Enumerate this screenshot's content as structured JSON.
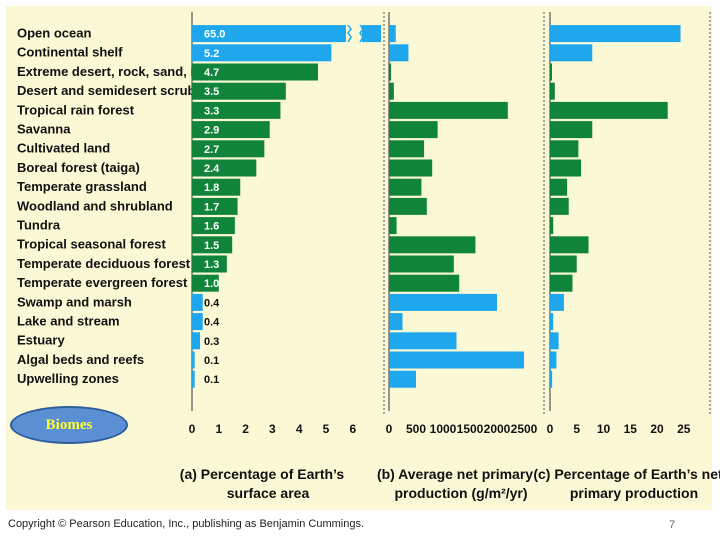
{
  "badge_label": "Biomes",
  "copyright": "Copyright © Pearson Education, Inc., publishing as Benjamin Cummings.",
  "page_number": "7",
  "colors": {
    "aquatic": "#1ea7ec",
    "terrestrial": "#10843a",
    "background": "#fbf8d6",
    "badge": "#5b8fd4",
    "badge_text": "#ffff33"
  },
  "chart_data": {
    "type": "bar",
    "orientation": "horizontal",
    "categories": [
      "Open ocean",
      "Continental shelf",
      "Extreme desert, rock, sand, ice",
      "Desert and semidesert scrub",
      "Tropical rain forest",
      "Savanna",
      "Cultivated land",
      "Boreal forest (taiga)",
      "Temperate grassland",
      "Woodland and shrubland",
      "Tundra",
      "Tropical seasonal forest",
      "Temperate deciduous forest",
      "Temperate evergreen forest",
      "Swamp and marsh",
      "Lake and stream",
      "Estuary",
      "Algal beds and reefs",
      "Upwelling zones"
    ],
    "category_group": [
      "aquatic",
      "aquatic",
      "terrestrial",
      "terrestrial",
      "terrestrial",
      "terrestrial",
      "terrestrial",
      "terrestrial",
      "terrestrial",
      "terrestrial",
      "terrestrial",
      "terrestrial",
      "terrestrial",
      "terrestrial",
      "aquatic",
      "aquatic",
      "aquatic",
      "aquatic",
      "aquatic"
    ],
    "panels": [
      {
        "title_lines": [
          "(a) Percentage of Earth’s",
          "surface area"
        ],
        "xlim": [
          0,
          6.5
        ],
        "ticks": [
          0,
          1,
          2,
          3,
          4,
          5,
          6
        ],
        "axis_break": true,
        "values": [
          65.0,
          5.2,
          4.7,
          3.5,
          3.3,
          2.9,
          2.7,
          2.4,
          1.8,
          1.7,
          1.6,
          1.5,
          1.3,
          1.0,
          0.4,
          0.4,
          0.3,
          0.1,
          0.1
        ],
        "labels": [
          "65.0",
          "5.2",
          "4.7",
          "3.5",
          "3.3",
          "2.9",
          "2.7",
          "2.4",
          "1.8",
          "1.7",
          "1.6",
          "1.5",
          "1.3",
          "1.0",
          "0.4",
          "0.4",
          "0.3",
          "0.1",
          "0.1"
        ]
      },
      {
        "title_lines": [
          "(b) Average net primary",
          "production (g/m²/yr)"
        ],
        "xlim": [
          0,
          2700
        ],
        "ticks": [
          0,
          500,
          1000,
          1500,
          2000,
          2500
        ],
        "values": [
          125,
          360,
          3,
          90,
          2200,
          900,
          650,
          800,
          600,
          700,
          140,
          1600,
          1200,
          1300,
          2000,
          250,
          1250,
          2500,
          500
        ]
      },
      {
        "title_lines": [
          "(c) Percentage of Earth’s net",
          "primary production"
        ],
        "xlim": [
          0,
          29
        ],
        "ticks": [
          0,
          5,
          10,
          15,
          20,
          25
        ],
        "values": [
          24.4,
          7.9,
          0.1,
          0.9,
          22.0,
          7.9,
          5.3,
          5.8,
          3.2,
          3.5,
          0.6,
          7.2,
          5.0,
          4.2,
          2.6,
          0.6,
          1.6,
          1.2,
          0.4
        ]
      }
    ]
  }
}
